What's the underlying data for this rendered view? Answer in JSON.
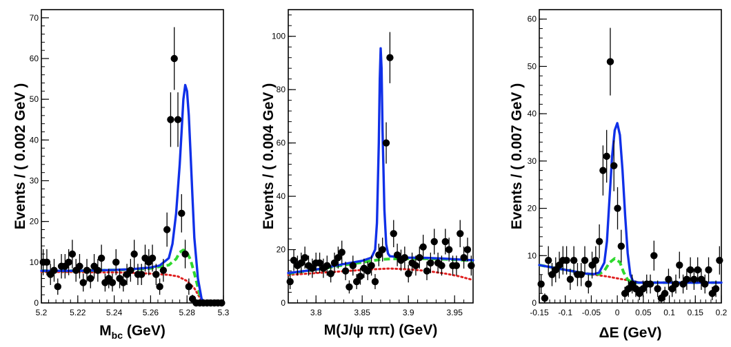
{
  "colors": {
    "total_fit": "#1030e8",
    "background_sum": "#2ed82e",
    "combinatorial_bkg": "#e02020",
    "points": "#000000",
    "axes": "#000000"
  },
  "chart_data": [
    {
      "type": "scatter",
      "title": "",
      "xlabel": "M",
      "xlabel_sub": "bc",
      "xlabel_unit": " (GeV)",
      "ylabel": "Events / ( 0.002 GeV )",
      "xlim": [
        5.2,
        5.3
      ],
      "ylim": [
        0,
        72
      ],
      "xticks": [
        5.2,
        5.22,
        5.24,
        5.26,
        5.28,
        5.3
      ],
      "xtick_labels": [
        "5.2",
        "5.22",
        "5.24",
        "5.26",
        "5.28",
        "5.3"
      ],
      "yticks": [
        0,
        10,
        20,
        30,
        40,
        50,
        60,
        70
      ],
      "ytick_labels": [
        "0",
        "10",
        "20",
        "30",
        "40",
        "50",
        "60",
        "70"
      ],
      "points": {
        "x": [
          5.201,
          5.203,
          5.205,
          5.207,
          5.209,
          5.211,
          5.213,
          5.215,
          5.217,
          5.219,
          5.221,
          5.223,
          5.225,
          5.227,
          5.229,
          5.231,
          5.233,
          5.235,
          5.237,
          5.239,
          5.241,
          5.243,
          5.245,
          5.247,
          5.249,
          5.251,
          5.253,
          5.255,
          5.257,
          5.259,
          5.261,
          5.263,
          5.265,
          5.267,
          5.269,
          5.271,
          5.273,
          5.275,
          5.277,
          5.279,
          5.281,
          5.283,
          5.285,
          5.287,
          5.289,
          5.291,
          5.293,
          5.295,
          5.297,
          5.299
        ],
        "y": [
          10,
          10,
          7,
          8,
          4,
          9,
          9,
          10,
          12,
          8,
          9,
          5,
          8,
          6,
          9,
          8,
          11,
          5,
          6,
          5,
          10,
          6,
          5,
          7,
          8,
          12,
          7,
          7,
          11,
          10,
          11,
          7,
          4,
          8,
          18,
          45,
          60,
          45,
          22,
          12,
          4,
          1,
          0,
          0,
          0,
          0,
          0,
          0,
          0,
          0
        ],
        "err": [
          3.2,
          3.2,
          2.6,
          2.8,
          2.0,
          3.0,
          3.0,
          3.2,
          3.5,
          2.8,
          3.0,
          2.2,
          2.8,
          2.4,
          3.0,
          2.8,
          3.3,
          2.2,
          2.4,
          2.2,
          3.2,
          2.4,
          2.2,
          2.6,
          2.8,
          3.5,
          2.6,
          2.6,
          3.3,
          3.2,
          3.3,
          2.6,
          2.0,
          2.8,
          4.2,
          6.7,
          7.7,
          6.7,
          4.7,
          3.5,
          2.0,
          1.0,
          0.6,
          0.6,
          0.6,
          0.6,
          0.6,
          0.6,
          0.6,
          0.6
        ]
      },
      "curves": [
        {
          "name": "combinatorial background",
          "style": "red-dotted",
          "x": [
            5.2,
            5.21,
            5.22,
            5.23,
            5.24,
            5.25,
            5.26,
            5.27,
            5.275,
            5.28,
            5.284,
            5.287,
            5.289
          ],
          "y": [
            7.6,
            7.6,
            7.6,
            7.5,
            7.5,
            7.4,
            7.2,
            6.9,
            6.5,
            5.4,
            3.6,
            1.3,
            0
          ]
        },
        {
          "name": "total background",
          "style": "green-dashed",
          "x": [
            5.2,
            5.21,
            5.22,
            5.23,
            5.24,
            5.25,
            5.26,
            5.27,
            5.274,
            5.276,
            5.278,
            5.28,
            5.282,
            5.284,
            5.287,
            5.289,
            5.3
          ],
          "y": [
            7.9,
            7.9,
            7.9,
            8.0,
            8.1,
            8.2,
            8.5,
            9.3,
            10.8,
            12.4,
            13.0,
            12.4,
            10.5,
            7.3,
            2.0,
            0,
            0
          ]
        },
        {
          "name": "total fit",
          "style": "blue-solid",
          "x": [
            5.2,
            5.21,
            5.22,
            5.23,
            5.24,
            5.25,
            5.26,
            5.265,
            5.27,
            5.272,
            5.274,
            5.276,
            5.277,
            5.278,
            5.279,
            5.28,
            5.281,
            5.282,
            5.283,
            5.284,
            5.286,
            5.288,
            5.29,
            5.3
          ],
          "y": [
            7.9,
            7.9,
            7.9,
            8.0,
            8.1,
            8.3,
            8.7,
            9.2,
            11.0,
            14.5,
            22.0,
            34.0,
            42.0,
            50.0,
            53.5,
            52.0,
            46.0,
            36.0,
            26.0,
            16.0,
            6.0,
            1.0,
            0,
            0
          ]
        }
      ]
    },
    {
      "type": "scatter",
      "title": "",
      "xlabel": "M(J/ψ ππ) (GeV)",
      "ylabel": "Events / ( 0.004 GeV )",
      "xlim": [
        3.77,
        3.97
      ],
      "ylim": [
        0,
        110
      ],
      "xticks": [
        3.8,
        3.85,
        3.9,
        3.95
      ],
      "xtick_labels": [
        "3.8",
        "3.85",
        "3.9",
        "3.95"
      ],
      "yticks": [
        0,
        20,
        40,
        60,
        80,
        100
      ],
      "ytick_labels": [
        "0",
        "20",
        "40",
        "60",
        "80",
        "100"
      ],
      "points": {
        "x": [
          3.772,
          3.776,
          3.78,
          3.784,
          3.788,
          3.792,
          3.796,
          3.8,
          3.804,
          3.808,
          3.812,
          3.816,
          3.82,
          3.824,
          3.828,
          3.832,
          3.836,
          3.84,
          3.844,
          3.848,
          3.852,
          3.856,
          3.86,
          3.864,
          3.868,
          3.872,
          3.876,
          3.88,
          3.884,
          3.888,
          3.892,
          3.896,
          3.9,
          3.904,
          3.908,
          3.912,
          3.916,
          3.92,
          3.924,
          3.928,
          3.932,
          3.936,
          3.94,
          3.944,
          3.948,
          3.952,
          3.956,
          3.96,
          3.964,
          3.968
        ],
        "y": [
          8,
          16,
          14,
          15,
          17,
          14,
          13,
          15,
          15,
          13,
          14,
          11,
          15,
          17,
          19,
          12,
          6,
          14,
          8,
          10,
          13,
          12,
          14,
          8,
          18,
          20,
          60,
          92,
          26,
          18,
          16,
          17,
          11,
          15,
          14,
          17,
          21,
          12,
          15,
          23,
          15,
          14,
          23,
          20,
          14,
          14,
          26,
          17,
          20,
          14
        ]
      },
      "curves": [
        {
          "name": "combinatorial background",
          "style": "red-dotted",
          "x": [
            3.77,
            3.8,
            3.83,
            3.86,
            3.88,
            3.9,
            3.92,
            3.94,
            3.955,
            3.97
          ],
          "y": [
            10.5,
            11.2,
            11.9,
            12.6,
            12.9,
            12.6,
            12.0,
            11.0,
            10.0,
            8.6
          ]
        },
        {
          "name": "total background",
          "style": "green-dashed",
          "x": [
            3.77,
            3.79,
            3.81,
            3.83,
            3.85,
            3.86,
            3.87,
            3.88,
            3.9,
            3.92,
            3.94,
            3.96,
            3.97
          ],
          "y": [
            11.0,
            12.0,
            13.0,
            14.2,
            15.2,
            15.8,
            16.3,
            16.5,
            16.6,
            16.6,
            16.4,
            16.0,
            15.8
          ]
        },
        {
          "name": "total fit",
          "style": "blue-solid",
          "x": [
            3.77,
            3.8,
            3.83,
            3.85,
            3.86,
            3.864,
            3.866,
            3.868,
            3.869,
            3.87,
            3.871,
            3.872,
            3.874,
            3.876,
            3.878,
            3.88,
            3.9,
            3.92,
            3.94,
            3.96,
            3.97
          ],
          "y": [
            11.2,
            12.5,
            14.6,
            15.8,
            17.0,
            20.0,
            30.0,
            60.0,
            84.0,
            95.5,
            88.0,
            65.0,
            35.0,
            22.0,
            18.5,
            17.5,
            17.0,
            16.9,
            16.6,
            16.2,
            16.0
          ]
        }
      ]
    },
    {
      "type": "scatter",
      "title": "",
      "xlabel": "ΔE (GeV)",
      "ylabel": "Events / ( 0.007 GeV )",
      "xlim": [
        -0.15,
        0.2
      ],
      "ylim": [
        0,
        62
      ],
      "xticks": [
        -0.15,
        -0.1,
        -0.05,
        0,
        0.05,
        0.1,
        0.15,
        0.2
      ],
      "xtick_labels": [
        "-0.15",
        "-0.1",
        "-0.05",
        "0",
        "0.05",
        "0.1",
        "0.15",
        "0.2"
      ],
      "yticks": [
        0,
        10,
        20,
        30,
        40,
        50,
        60
      ],
      "ytick_labels": [
        "0",
        "10",
        "20",
        "30",
        "40",
        "50",
        "60"
      ],
      "points": {
        "x": [
          -0.1465,
          -0.1395,
          -0.1325,
          -0.1255,
          -0.1185,
          -0.1115,
          -0.1045,
          -0.0975,
          -0.0905,
          -0.0835,
          -0.0765,
          -0.0695,
          -0.0625,
          -0.0555,
          -0.0485,
          -0.0415,
          -0.0345,
          -0.0275,
          -0.0205,
          -0.0135,
          -0.0065,
          0.0005,
          0.0075,
          0.0145,
          0.0215,
          0.0285,
          0.0355,
          0.0425,
          0.0495,
          0.0565,
          0.0635,
          0.0705,
          0.0775,
          0.0845,
          0.0915,
          0.0985,
          0.1055,
          0.1125,
          0.1195,
          0.1265,
          0.1335,
          0.1405,
          0.1475,
          0.1545,
          0.1615,
          0.1685,
          0.1755,
          0.1825,
          0.1895,
          0.1965
        ],
        "y": [
          4,
          1,
          9,
          6,
          7,
          8,
          9,
          9,
          5,
          9,
          6,
          6,
          9,
          4,
          8,
          9,
          13,
          28,
          31,
          51,
          29,
          20,
          12,
          2,
          3,
          4,
          3,
          2,
          3,
          4,
          4,
          10,
          3,
          1,
          2,
          5,
          3,
          4,
          8,
          4,
          5,
          7,
          5,
          7,
          5,
          4,
          7,
          2,
          3,
          9
        ]
      },
      "curves": [
        {
          "name": "combinatorial background",
          "style": "red-dotted",
          "x": [
            -0.15,
            -0.12,
            -0.09,
            -0.06,
            -0.04,
            -0.02,
            0.0,
            0.02,
            0.04,
            0.07,
            0.1,
            0.15,
            0.2
          ],
          "y": [
            8.0,
            7.4,
            6.8,
            6.2,
            5.9,
            5.6,
            5.2,
            4.8,
            4.4,
            4.3,
            4.3,
            4.3,
            4.3
          ]
        },
        {
          "name": "total background",
          "style": "green-dashed",
          "x": [
            -0.15,
            -0.12,
            -0.09,
            -0.06,
            -0.045,
            -0.035,
            -0.025,
            -0.015,
            -0.005,
            0.005,
            0.012,
            0.02,
            0.03,
            0.05,
            0.1,
            0.15,
            0.2
          ],
          "y": [
            8.0,
            7.4,
            6.8,
            6.2,
            6.0,
            6.1,
            6.8,
            8.5,
            9.4,
            8.6,
            6.5,
            4.9,
            4.3,
            4.3,
            4.3,
            4.3,
            4.3
          ]
        },
        {
          "name": "total fit",
          "style": "blue-solid",
          "x": [
            -0.15,
            -0.12,
            -0.09,
            -0.06,
            -0.045,
            -0.035,
            -0.025,
            -0.02,
            -0.015,
            -0.01,
            -0.005,
            0.0,
            0.005,
            0.01,
            0.015,
            0.02,
            0.025,
            0.03,
            0.04,
            0.05,
            0.1,
            0.15,
            0.2
          ],
          "y": [
            8.0,
            7.4,
            6.8,
            6.2,
            6.1,
            6.4,
            8.5,
            13.0,
            22.0,
            31.0,
            36.5,
            38.0,
            35.5,
            28.0,
            18.5,
            10.5,
            6.0,
            4.6,
            4.3,
            4.3,
            4.3,
            4.3,
            4.3
          ]
        }
      ]
    }
  ]
}
